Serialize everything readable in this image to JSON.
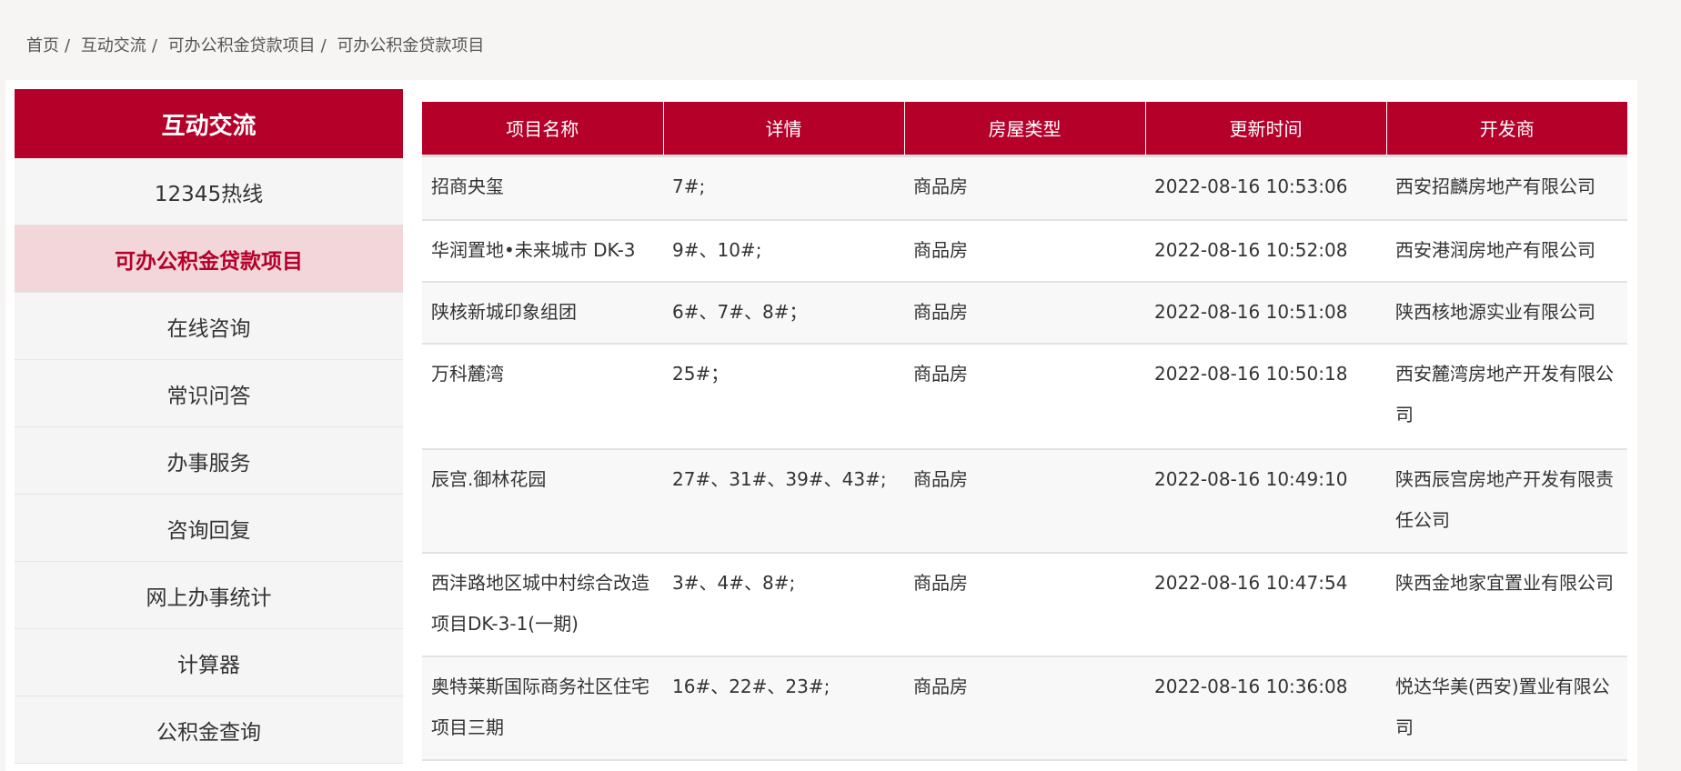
{
  "breadcrumb": [
    "首页",
    "互动交流",
    "可办公积金贷款项目",
    "可办公积金贷款项目"
  ],
  "breadcrumb_sep": "/",
  "sidebar": {
    "title": "互动交流",
    "active_index": 1,
    "items": [
      "12345热线",
      "可办公积金贷款项目",
      "在线咨询",
      "常识问答",
      "办事服务",
      "咨询回复",
      "网上办事统计",
      "计算器",
      "公积金查询"
    ]
  },
  "table": {
    "headers": [
      "项目名称",
      "详情",
      "房屋类型",
      "更新时间",
      "开发商"
    ],
    "rows": [
      [
        "招商央玺",
        "7#;",
        "商品房",
        "2022-08-16 10:53:06",
        "西安招麟房地产有限公司"
      ],
      [
        "华润置地•未来城市 DK-3",
        "9#、10#;",
        "商品房",
        "2022-08-16 10:52:08",
        "西安港润房地产有限公司"
      ],
      [
        "陕核新城印象组团",
        "6#、7#、8#；",
        "商品房",
        "2022-08-16 10:51:08",
        "陕西核地源实业有限公司"
      ],
      [
        "万科麓湾",
        "25#；",
        "商品房",
        "2022-08-16 10:50:18",
        "西安麓湾房地产开发有限公司"
      ],
      [
        "辰宫.御林花园",
        "27#、31#、39#、43#;",
        "商品房",
        "2022-08-16 10:49:10",
        "陕西辰宫房地产开发有限责任公司"
      ],
      [
        "西沣路地区城中村综合改造项目DK-3-1(一期)",
        "3#、4#、8#;",
        "商品房",
        "2022-08-16 10:47:54",
        "陕西金地家宜置业有限公司"
      ],
      [
        "奥特莱斯国际商务社区住宅项目三期",
        "16#、22#、23#;",
        "商品房",
        "2022-08-16 10:36:08",
        "悦达华美(西安)置业有限公司"
      ]
    ]
  },
  "colors": {
    "brand_red": "#b5002a",
    "active_bg": "#f2d6d9"
  }
}
